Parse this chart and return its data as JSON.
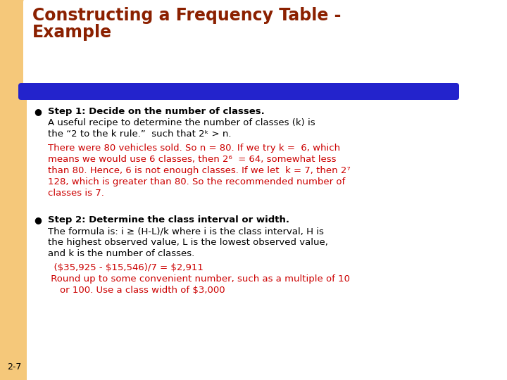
{
  "title_line1": "Constructing a Frequency Table -",
  "title_line2": "Example",
  "title_color": "#8B2000",
  "bg_color": "#FFFFFF",
  "left_bar_color": "#F5C87A",
  "blue_bar_color": "#2323CC",
  "footer": "2-7",
  "bullet1_bold": "Step 1: Decide on the number of classes.",
  "bullet2_bold": "Step 2: Determine the class interval or width.",
  "text_color": "#000000",
  "red_color": "#CC0000"
}
